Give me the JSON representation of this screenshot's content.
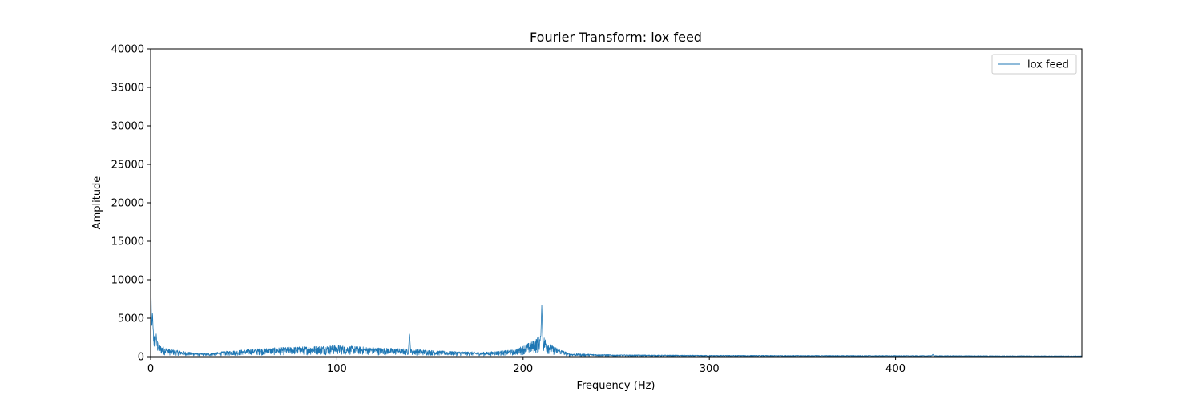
{
  "chart_data": {
    "type": "line",
    "title": "Fourier Transform: lox feed",
    "xlabel": "Frequency (Hz)",
    "ylabel": "Amplitude",
    "xlim": [
      0,
      500
    ],
    "ylim": [
      0,
      40000
    ],
    "x_ticks": [
      0,
      100,
      200,
      300,
      400
    ],
    "y_ticks": [
      0,
      5000,
      10000,
      15000,
      20000,
      25000,
      30000,
      35000,
      40000
    ],
    "grid": false,
    "legend_position": "upper right",
    "series": [
      {
        "name": "lox feed",
        "color": "#1f77b4",
        "peaks": [
          {
            "x": 0,
            "y": 9500
          },
          {
            "x": 1,
            "y": 4500
          },
          {
            "x": 3,
            "y": 2200
          },
          {
            "x": 139,
            "y": 2800
          },
          {
            "x": 210,
            "y": 5800
          },
          {
            "x": 420,
            "y": 250
          }
        ],
        "envelope": [
          {
            "x": 0,
            "y": 6000
          },
          {
            "x": 2,
            "y": 3000
          },
          {
            "x": 5,
            "y": 1500
          },
          {
            "x": 10,
            "y": 1000
          },
          {
            "x": 20,
            "y": 600
          },
          {
            "x": 30,
            "y": 400
          },
          {
            "x": 40,
            "y": 700
          },
          {
            "x": 60,
            "y": 1100
          },
          {
            "x": 80,
            "y": 1300
          },
          {
            "x": 100,
            "y": 1500
          },
          {
            "x": 120,
            "y": 1200
          },
          {
            "x": 140,
            "y": 1000
          },
          {
            "x": 160,
            "y": 700
          },
          {
            "x": 180,
            "y": 600
          },
          {
            "x": 195,
            "y": 900
          },
          {
            "x": 205,
            "y": 2000
          },
          {
            "x": 210,
            "y": 3000
          },
          {
            "x": 215,
            "y": 1500
          },
          {
            "x": 225,
            "y": 400
          },
          {
            "x": 250,
            "y": 250
          },
          {
            "x": 300,
            "y": 180
          },
          {
            "x": 400,
            "y": 150
          },
          {
            "x": 500,
            "y": 100
          }
        ]
      }
    ]
  }
}
